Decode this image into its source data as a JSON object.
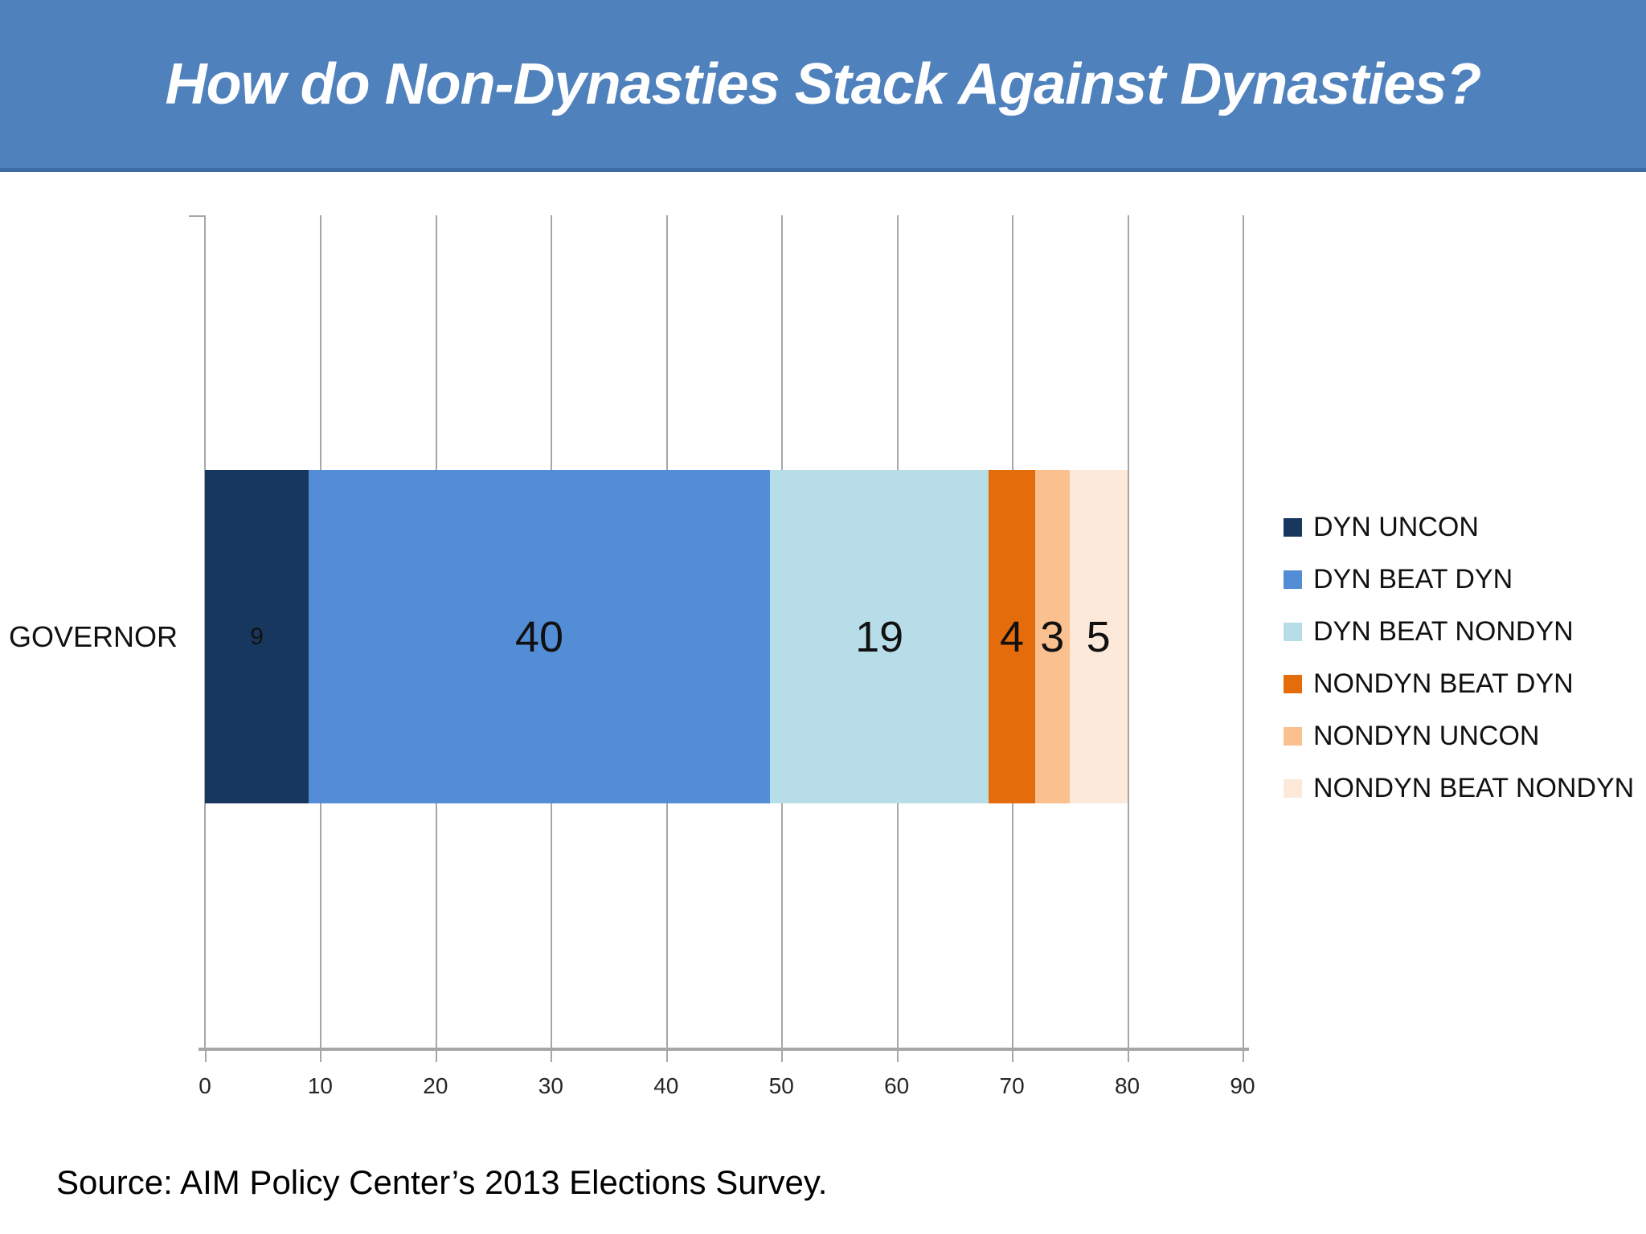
{
  "title": "How do Non-Dynasties Stack Against Dynasties?",
  "source": "Source: AIM Policy Center’s 2013 Elections Survey.",
  "category_label": "GOVERNOR",
  "colors": {
    "banner": "#4F81BD",
    "banner_border": "#3E6BA5",
    "grid": "#A6A6A6",
    "axis": "#A6A6A6",
    "label_text": "#111111"
  },
  "chart_data": {
    "type": "bar",
    "orientation": "horizontal",
    "stacked": true,
    "grid": true,
    "legend_position": "right",
    "categories": [
      "GOVERNOR"
    ],
    "xlim": [
      0,
      90
    ],
    "xticks": [
      0,
      10,
      20,
      30,
      40,
      50,
      60,
      70,
      80,
      90
    ],
    "series": [
      {
        "name": "DYN UNCON",
        "values": [
          9
        ],
        "color": "#17375E",
        "label_size": "small"
      },
      {
        "name": "DYN BEAT DYN",
        "values": [
          40
        ],
        "color": "#538DD5",
        "label_size": "large"
      },
      {
        "name": "DYN BEAT NONDYN",
        "values": [
          19
        ],
        "color": "#B7DEE8",
        "label_size": "large"
      },
      {
        "name": "NONDYN BEAT DYN",
        "values": [
          4
        ],
        "color": "#E46C0A",
        "label_size": "large"
      },
      {
        "name": "NONDYN UNCON",
        "values": [
          3
        ],
        "color": "#FAC090",
        "label_size": "large"
      },
      {
        "name": "NONDYN BEAT NONDYN",
        "values": [
          5
        ],
        "color": "#FDE9D9",
        "label_size": "large"
      }
    ]
  }
}
